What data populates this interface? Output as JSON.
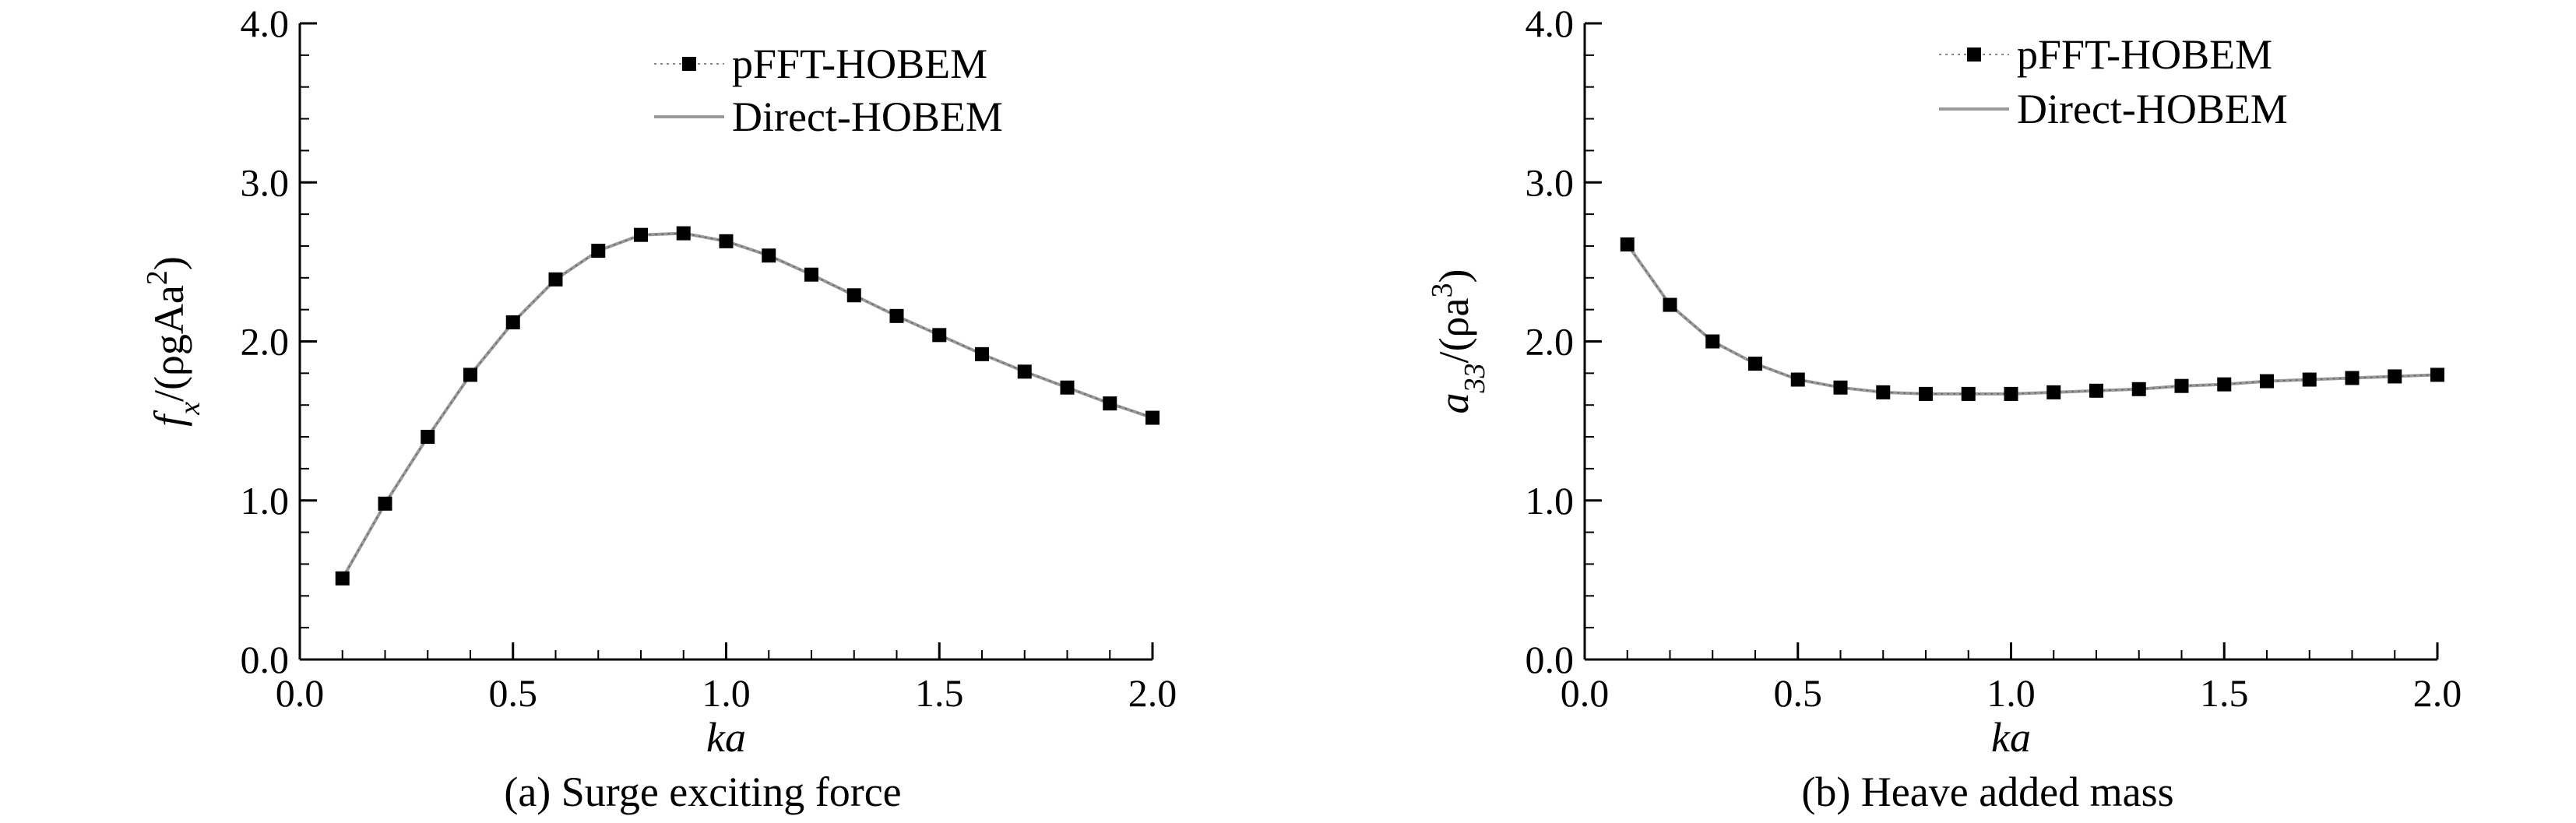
{
  "chart_data": [
    {
      "type": "line",
      "caption": "(a) Surge exciting force",
      "xlabel": "ka",
      "ylabel": {
        "base": "f",
        "sub": "x",
        "rest": "/(ρgAa",
        "sup": "2",
        "close": ")"
      },
      "xlim": [
        0.0,
        2.0
      ],
      "ylim": [
        0.0,
        4.0
      ],
      "x_ticks": [
        "0.0",
        "0.5",
        "1.0",
        "1.5",
        "2.0"
      ],
      "y_ticks": [
        "0.0",
        "1.0",
        "2.0",
        "3.0",
        "4.0"
      ],
      "legend_position": "top-right",
      "grid": false,
      "series": [
        {
          "name": "pFFT-HOBEM",
          "style": "markers",
          "color": "#000000",
          "x": [
            0.1,
            0.2,
            0.3,
            0.4,
            0.5,
            0.6,
            0.7,
            0.8,
            0.9,
            1.0,
            1.1,
            1.2,
            1.3,
            1.4,
            1.5,
            1.6,
            1.7,
            1.8,
            1.9,
            2.0
          ],
          "y": [
            0.51,
            0.98,
            1.4,
            1.79,
            2.12,
            2.39,
            2.57,
            2.67,
            2.68,
            2.63,
            2.54,
            2.42,
            2.29,
            2.16,
            2.04,
            1.92,
            1.81,
            1.71,
            1.61,
            1.52
          ]
        },
        {
          "name": "Direct-HOBEM",
          "style": "line",
          "color": "#9a9a9a",
          "x": [
            0.1,
            0.2,
            0.3,
            0.4,
            0.5,
            0.6,
            0.7,
            0.8,
            0.9,
            1.0,
            1.1,
            1.2,
            1.3,
            1.4,
            1.5,
            1.6,
            1.7,
            1.8,
            1.9,
            2.0
          ],
          "y": [
            0.51,
            0.98,
            1.4,
            1.79,
            2.12,
            2.39,
            2.57,
            2.67,
            2.68,
            2.63,
            2.54,
            2.42,
            2.29,
            2.16,
            2.04,
            1.92,
            1.81,
            1.71,
            1.61,
            1.52
          ]
        }
      ]
    },
    {
      "type": "line",
      "caption": "(b) Heave added mass",
      "xlabel": "ka",
      "ylabel": {
        "base": "a",
        "sub": "33",
        "rest": "/(ρa",
        "sup": "3",
        "close": ")"
      },
      "xlim": [
        0.0,
        2.0
      ],
      "ylim": [
        0.0,
        4.0
      ],
      "x_ticks": [
        "0.0",
        "0.5",
        "1.0",
        "1.5",
        "2.0"
      ],
      "y_ticks": [
        "0.0",
        "1.0",
        "2.0",
        "3.0",
        "4.0"
      ],
      "legend_position": "top-right",
      "grid": false,
      "series": [
        {
          "name": "pFFT-HOBEM",
          "style": "markers",
          "color": "#000000",
          "x": [
            0.1,
            0.2,
            0.3,
            0.4,
            0.5,
            0.6,
            0.7,
            0.8,
            0.9,
            1.0,
            1.1,
            1.2,
            1.3,
            1.4,
            1.5,
            1.6,
            1.7,
            1.8,
            1.9,
            2.0
          ],
          "y": [
            2.61,
            2.23,
            2.0,
            1.86,
            1.76,
            1.71,
            1.68,
            1.67,
            1.67,
            1.67,
            1.68,
            1.69,
            1.7,
            1.72,
            1.73,
            1.75,
            1.76,
            1.77,
            1.78,
            1.79
          ]
        },
        {
          "name": "Direct-HOBEM",
          "style": "line",
          "color": "#9a9a9a",
          "x": [
            0.1,
            0.2,
            0.3,
            0.4,
            0.5,
            0.6,
            0.7,
            0.8,
            0.9,
            1.0,
            1.1,
            1.2,
            1.3,
            1.4,
            1.5,
            1.6,
            1.7,
            1.8,
            1.9,
            2.0
          ],
          "y": [
            2.61,
            2.23,
            2.0,
            1.86,
            1.76,
            1.71,
            1.68,
            1.67,
            1.67,
            1.67,
            1.68,
            1.69,
            1.7,
            1.72,
            1.73,
            1.75,
            1.76,
            1.77,
            1.78,
            1.79
          ]
        }
      ]
    }
  ]
}
